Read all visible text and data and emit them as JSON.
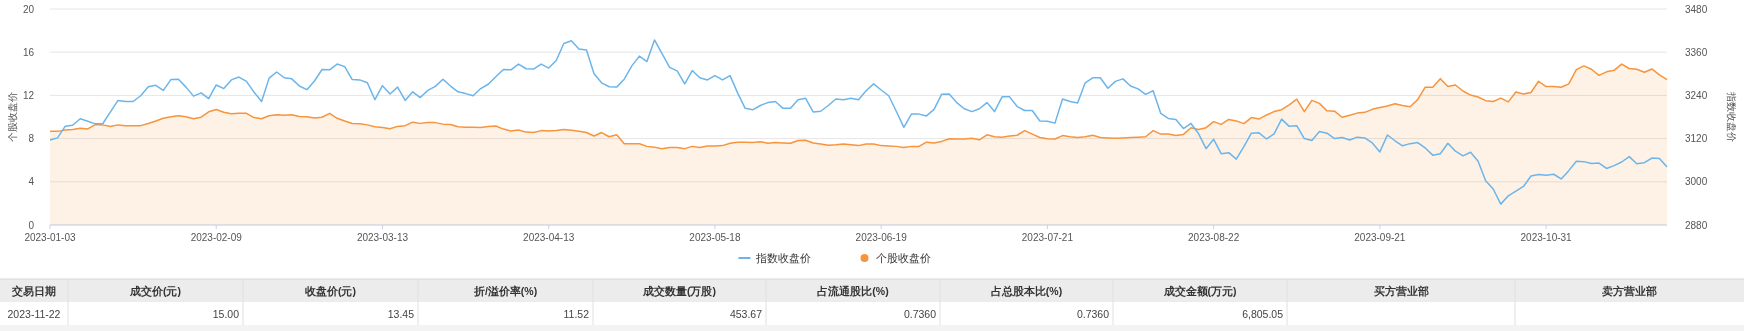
{
  "chart_data": {
    "type": "line",
    "ylabel": "个股收盘价",
    "y2label": "指数收盘价",
    "categories": [
      "2023-01-03",
      null,
      null,
      null,
      null,
      null,
      null,
      null,
      null,
      null,
      null,
      null,
      null,
      null,
      null,
      null,
      null,
      null,
      null,
      null,
      null,
      null,
      "2023-02-09",
      null,
      null,
      null,
      null,
      null,
      null,
      null,
      null,
      null,
      null,
      null,
      null,
      null,
      null,
      null,
      null,
      null,
      null,
      null,
      null,
      null,
      "2023-03-13",
      null,
      null,
      null,
      null,
      null,
      null,
      null,
      null,
      null,
      null,
      null,
      null,
      null,
      null,
      null,
      null,
      null,
      null,
      null,
      null,
      null,
      "2023-04-13",
      null,
      null,
      null,
      null,
      null,
      null,
      null,
      null,
      null,
      null,
      null,
      null,
      null,
      null,
      null,
      null,
      null,
      null,
      null,
      null,
      null,
      "2023-05-18",
      null,
      null,
      null,
      null,
      null,
      null,
      null,
      null,
      null,
      null,
      null,
      null,
      null,
      null,
      null,
      null,
      null,
      null,
      null,
      null,
      null,
      "2023-06-19",
      null,
      null,
      null,
      null,
      null,
      null,
      null,
      null,
      null,
      null,
      null,
      null,
      null,
      null,
      null,
      null,
      null,
      null,
      null,
      null,
      null,
      "2023-07-21",
      null,
      null,
      null,
      null,
      null,
      null,
      null,
      null,
      null,
      null,
      null,
      null,
      null,
      null,
      null,
      null,
      null,
      null,
      null,
      null,
      null,
      "2023-08-22",
      null,
      null,
      null,
      null,
      null,
      null,
      null,
      null,
      null,
      null,
      null,
      null,
      null,
      null,
      null,
      null,
      null,
      null,
      null,
      null,
      null,
      "2023-09-21",
      null,
      null,
      null,
      null,
      null,
      null,
      null,
      null,
      null,
      null,
      null,
      null,
      null,
      null,
      null,
      null,
      null,
      null,
      null,
      null,
      null,
      "2023-10-31",
      null,
      null,
      null,
      null,
      null,
      null,
      null,
      null,
      null,
      null,
      null,
      null,
      null,
      null,
      null,
      null
    ],
    "series": [
      {
        "name": "指数收盘价",
        "axis": "y2",
        "color": "#6cb5ea",
        "values": [
          3116,
          3122,
          3154,
          3157,
          3175,
          3168,
          3161,
          3162,
          3194,
          3226,
          3223,
          3223,
          3239,
          3264,
          3268,
          3254,
          3284,
          3285,
          3263,
          3238,
          3247,
          3231,
          3269,
          3259,
          3283,
          3291,
          3279,
          3249,
          3223,
          3288,
          3305,
          3289,
          3286,
          3266,
          3256,
          3280,
          3312,
          3311,
          3327,
          3320,
          3284,
          3283,
          3275,
          3228,
          3267,
          3244,
          3263,
          3226,
          3250,
          3234,
          3254,
          3265,
          3285,
          3266,
          3250,
          3245,
          3239,
          3259,
          3271,
          3292,
          3312,
          3311,
          3327,
          3314,
          3313,
          3327,
          3316,
          3337,
          3384,
          3392,
          3369,
          3366,
          3300,
          3275,
          3264,
          3263,
          3285,
          3322,
          3349,
          3334,
          3394,
          3356,
          3318,
          3308,
          3272,
          3309,
          3289,
          3283,
          3295,
          3283,
          3295,
          3247,
          3204,
          3200,
          3212,
          3220,
          3223,
          3204,
          3204,
          3228,
          3232,
          3194,
          3196,
          3212,
          3230,
          3228,
          3232,
          3228,
          3253,
          3272,
          3255,
          3239,
          3196,
          3151,
          3188,
          3188,
          3183,
          3201,
          3243,
          3244,
          3220,
          3203,
          3195,
          3203,
          3220,
          3195,
          3236,
          3236,
          3209,
          3198,
          3198,
          3169,
          3168,
          3163,
          3230,
          3223,
          3219,
          3275,
          3289,
          3289,
          3260,
          3279,
          3286,
          3266,
          3258,
          3243,
          3253,
          3190,
          3176,
          3173,
          3148,
          3162,
          3134,
          3092,
          3118,
          3078,
          3081,
          3063,
          3098,
          3135,
          3136,
          3119,
          3133,
          3174,
          3154,
          3156,
          3120,
          3115,
          3140,
          3135,
          3120,
          3123,
          3116,
          3124,
          3122,
          3108,
          3083,
          3130,
          3114,
          3100,
          3106,
          3109,
          3094,
          3074,
          3078,
          3107,
          3085,
          3072,
          3082,
          3057,
          3003,
          2980,
          2938,
          2961,
          2974,
          2987,
          3016,
          3020,
          3018,
          3021,
          3008,
          3031,
          3057,
          3056,
          3051,
          3052,
          3037,
          3045,
          3055,
          3070,
          3050,
          3053,
          3066,
          3065,
          3041
        ]
      },
      {
        "name": "个股收盘价",
        "type": "area",
        "color": "#f7943c",
        "values": [
          8.67,
          8.67,
          8.8,
          8.85,
          8.95,
          8.9,
          9.3,
          9.27,
          9.13,
          9.27,
          9.2,
          9.2,
          9.2,
          9.4,
          9.63,
          9.88,
          10.02,
          10.12,
          10.02,
          9.84,
          9.98,
          10.48,
          10.69,
          10.44,
          10.3,
          10.34,
          10.34,
          9.95,
          9.84,
          10.12,
          10.2,
          10.16,
          10.2,
          10.05,
          10.02,
          9.91,
          9.98,
          10.34,
          9.88,
          9.63,
          9.4,
          9.38,
          9.27,
          9.1,
          9.02,
          8.92,
          9.13,
          9.2,
          9.52,
          9.41,
          9.48,
          9.48,
          9.34,
          9.3,
          9.1,
          9.06,
          9.06,
          9.02,
          9.13,
          9.17,
          8.88,
          8.7,
          8.8,
          8.6,
          8.56,
          8.74,
          8.7,
          8.74,
          8.85,
          8.77,
          8.67,
          8.56,
          8.24,
          8.56,
          8.17,
          8.35,
          7.53,
          7.53,
          7.53,
          7.28,
          7.21,
          7.07,
          7.18,
          7.18,
          7.07,
          7.28,
          7.18,
          7.32,
          7.32,
          7.35,
          7.57,
          7.67,
          7.67,
          7.64,
          7.71,
          7.57,
          7.64,
          7.6,
          7.57,
          7.82,
          7.85,
          7.6,
          7.5,
          7.39,
          7.42,
          7.5,
          7.42,
          7.35,
          7.5,
          7.5,
          7.35,
          7.32,
          7.28,
          7.18,
          7.28,
          7.28,
          7.67,
          7.6,
          7.74,
          7.99,
          7.96,
          7.96,
          8.03,
          7.89,
          8.35,
          8.17,
          8.13,
          8.24,
          8.31,
          8.74,
          8.42,
          8.1,
          7.99,
          7.96,
          8.28,
          8.17,
          8.1,
          8.17,
          8.31,
          8.1,
          8.06,
          8.03,
          8.06,
          8.1,
          8.13,
          8.17,
          8.74,
          8.42,
          8.42,
          8.28,
          8.39,
          9.01,
          8.84,
          9.01,
          9.57,
          9.32,
          9.77,
          9.64,
          9.39,
          9.95,
          9.81,
          10.19,
          10.5,
          10.68,
          11.13,
          11.65,
          10.5,
          11.54,
          11.26,
          10.57,
          10.54,
          9.98,
          10.16,
          10.36,
          10.43,
          10.71,
          10.88,
          11.02,
          11.23,
          11.06,
          10.95,
          11.61,
          12.76,
          12.76,
          13.55,
          12.82,
          12.96,
          12.41,
          12.03,
          11.85,
          11.51,
          11.44,
          11.75,
          11.4,
          12.31,
          12.13,
          12.27,
          13.31,
          12.82,
          12.82,
          12.76,
          13.07,
          14.38,
          14.73,
          14.42,
          13.86,
          14.18,
          14.32,
          14.9,
          14.49,
          14.42,
          14.14,
          14.45,
          13.9,
          13.45
        ]
      }
    ],
    "ylim": [
      0,
      20
    ],
    "yticks": [
      0,
      4,
      8,
      12,
      16,
      20
    ],
    "y2lim": [
      2880,
      3480
    ],
    "y2ticks": [
      2880,
      3000,
      3120,
      3240,
      3360,
      3480
    ],
    "grid": "y",
    "legend": "bottom",
    "marker": "none",
    "annotations": [
      "交易日期",
      "成交价(元)",
      "收盘价(元)",
      "折/溢价率(%)",
      "成交数量(万股)",
      "占流通股比(%)",
      "占总股本比(%)",
      "成交金额(万元)",
      "买方营业部",
      "卖方营业部",
      "2023-11-22",
      "15.00",
      "13.45",
      "11.52",
      "453.67",
      "0.7360",
      "0.7360",
      "6,805.05"
    ]
  }
}
